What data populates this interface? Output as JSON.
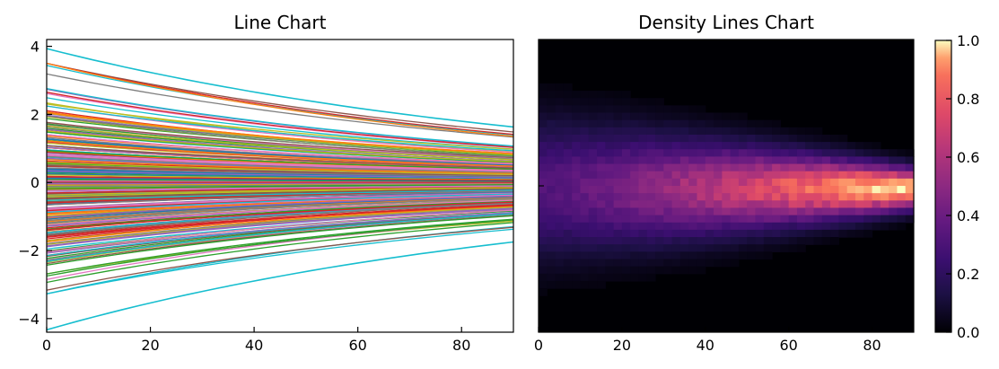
{
  "chart_data": [
    {
      "type": "line",
      "title": "Line Chart",
      "xlabel": "",
      "ylabel": "",
      "xlim": [
        0,
        90
      ],
      "ylim": [
        -4.4,
        4.2
      ],
      "x_ticks": [
        0,
        20,
        40,
        60,
        80
      ],
      "y_ticks": [
        -4,
        -2,
        0,
        2,
        4
      ],
      "x_tick_labels": [
        "0",
        "20",
        "40",
        "60",
        "80"
      ],
      "y_tick_labels": [
        "−4",
        "−2",
        "0",
        "2",
        "4"
      ],
      "x": [
        0,
        90
      ],
      "num_series": 300,
      "start_range": [
        -3.3,
        3.5
      ],
      "end_range": [
        -1.35,
        1.4
      ],
      "outlier_series": [
        {
          "start": 3.93,
          "end": 1.63
        },
        {
          "start": -4.33,
          "end": -1.75
        }
      ],
      "grid": false,
      "legend": "none"
    },
    {
      "type": "heatmap",
      "title": "Density Lines Chart",
      "xlabel": "",
      "ylabel": "",
      "xlim": [
        0,
        90
      ],
      "x_ticks": [
        0,
        20,
        40,
        60,
        80
      ],
      "x_tick_labels": [
        "0",
        "20",
        "40",
        "60",
        "80"
      ],
      "colormap": "magma",
      "colorbar_ticks": [
        0.0,
        0.2,
        0.4,
        0.6,
        0.8,
        1.0
      ],
      "colorbar_tick_labels": [
        "0.0",
        "0.2",
        "0.4",
        "0.6",
        "0.8",
        "1.0"
      ],
      "colorbar_range": [
        0.0,
        1.0
      ],
      "grid": false
    }
  ]
}
